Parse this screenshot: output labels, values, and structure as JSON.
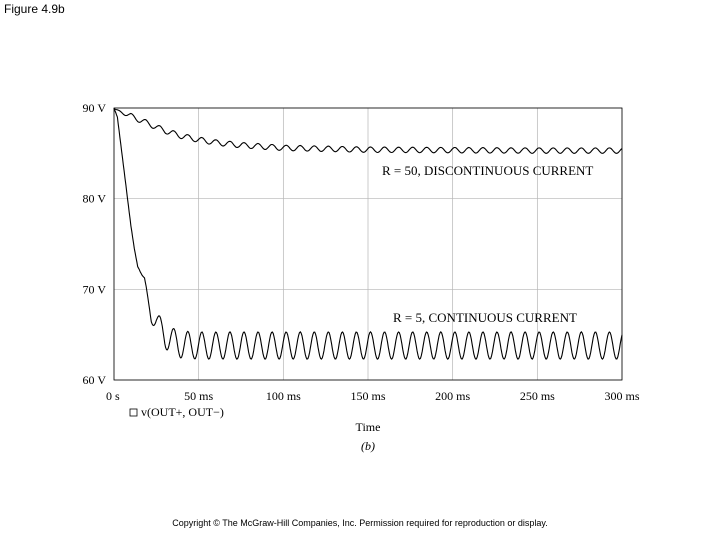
{
  "figure_label": "Figure 4.9b",
  "copyright": "Copyright © The McGraw-Hill Companies, Inc. Permission required for reproduction or display.",
  "chart_data": {
    "type": "line",
    "xlabel": "Time",
    "subcaption": "(b)",
    "legend_label": "v(OUT+, OUT−)",
    "xlim": [
      0,
      300
    ],
    "ylim": [
      60,
      90
    ],
    "x_ticks": [
      0,
      50,
      100,
      150,
      200,
      250,
      300
    ],
    "x_tick_labels": [
      "0 s",
      "50 ms",
      "100 ms",
      "150 ms",
      "200 ms",
      "250 ms",
      "300 ms"
    ],
    "y_ticks": [
      60,
      70,
      80,
      90
    ],
    "y_tick_labels": [
      "60 V",
      "70 V",
      "80 V",
      "90 V"
    ],
    "grid": true,
    "series": [
      {
        "name": "R = 50, DISCONTINUOUS CURRENT",
        "x": [
          0,
          5,
          10,
          15,
          20,
          25,
          30,
          35,
          40,
          50,
          60,
          75,
          100,
          150,
          200,
          250,
          300
        ],
        "y": [
          89.9,
          89.5,
          89.1,
          88.7,
          88.3,
          87.9,
          87.5,
          87.2,
          86.9,
          86.5,
          86.2,
          85.9,
          85.6,
          85.4,
          85.35,
          85.3,
          85.3
        ],
        "ripple_amplitude": 0.3,
        "ripple_period_ms": 8.3
      },
      {
        "name": "R = 5, CONTINUOUS CURRENT",
        "x": [
          0,
          2,
          4,
          6,
          8,
          10,
          12,
          14,
          16,
          18,
          20,
          22,
          25,
          28,
          30,
          35,
          40,
          50,
          70,
          100,
          150,
          200,
          250,
          300
        ],
        "y": [
          90,
          89,
          86,
          83,
          80,
          77,
          74.5,
          72.5,
          71.8,
          71,
          68.8,
          67,
          66.5,
          65.5,
          65,
          64.2,
          63.9,
          63.8,
          63.8,
          63.8,
          63.8,
          63.8,
          63.8,
          63.8
        ],
        "ripple_amplitude": 1.5,
        "ripple_period_ms": 8.3
      }
    ]
  }
}
